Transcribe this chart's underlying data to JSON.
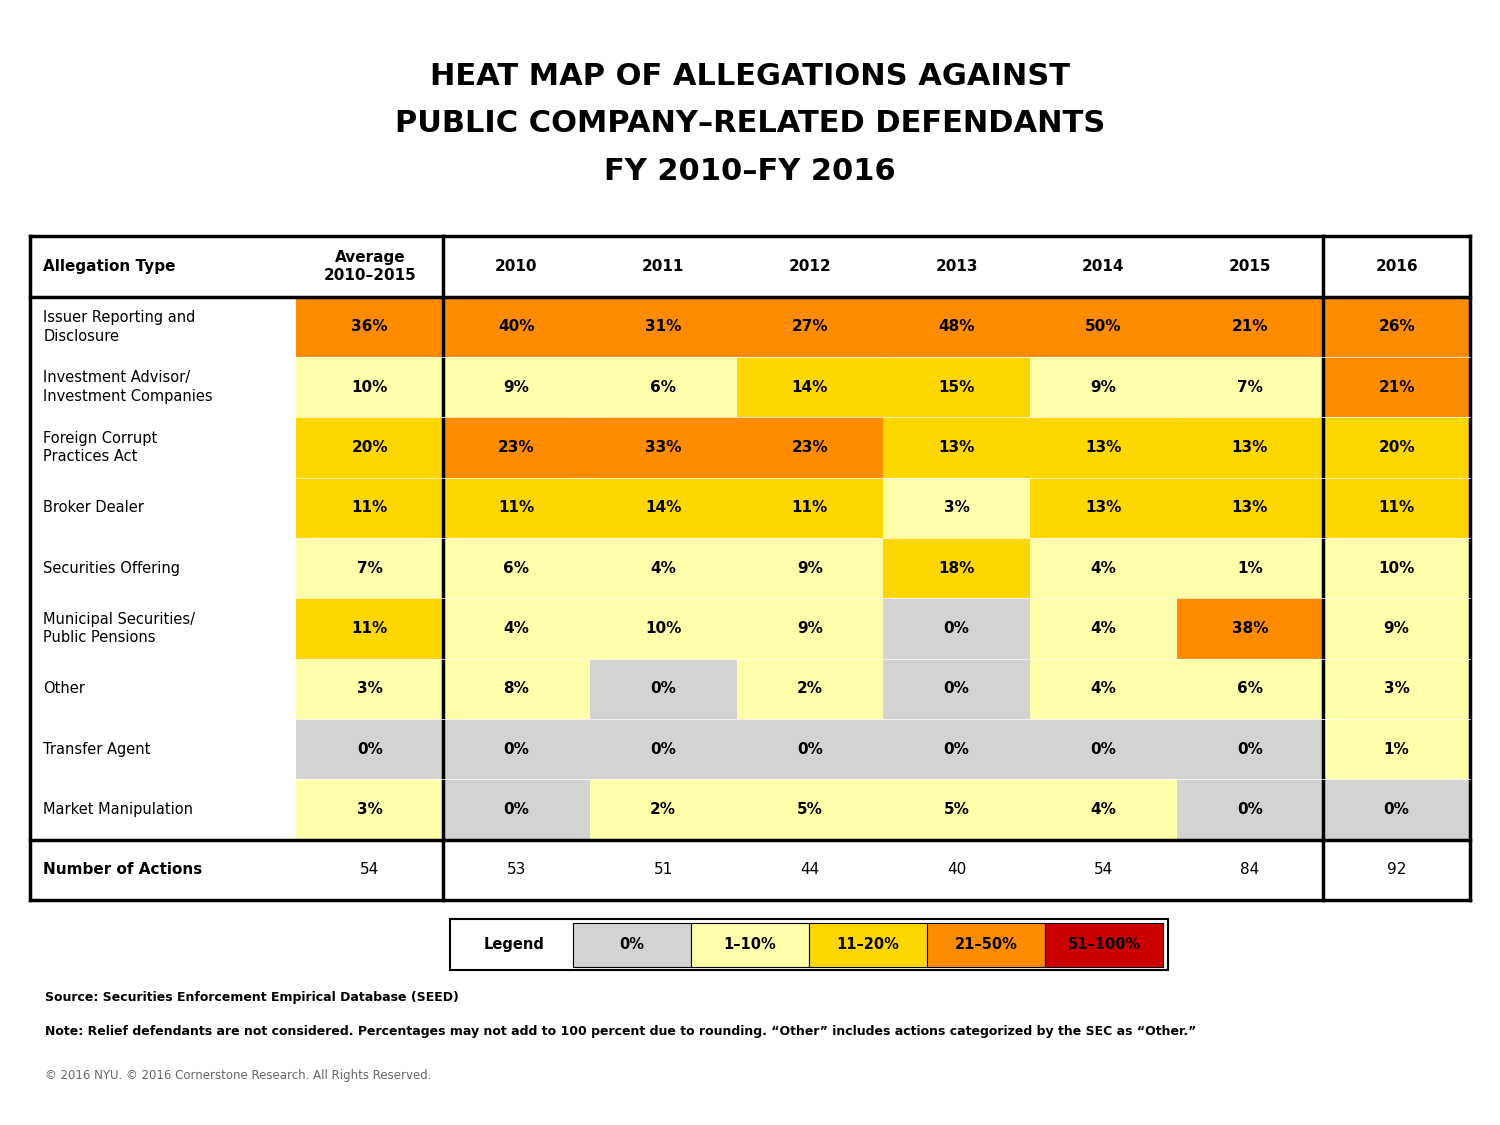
{
  "title": "HEAT MAP OF ALLEGATIONS AGAINST\nPUBLIC COMPANY–RELATED DEFENDANTS\nFY 2010–FY 2016",
  "col_headers": [
    "Average\n2010–2015",
    "2010",
    "2011",
    "2012",
    "2013",
    "2014",
    "2015",
    "2016"
  ],
  "row_labels": [
    "Issuer Reporting and\nDisclosure",
    "Investment Advisor/\nInvestment Companies",
    "Foreign Corrupt\nPractices Act",
    "Broker Dealer",
    "Securities Offering",
    "Municipal Securities/\nPublic Pensions",
    "Other",
    "Transfer Agent",
    "Market Manipulation"
  ],
  "data": [
    [
      36,
      40,
      31,
      27,
      48,
      50,
      21,
      26
    ],
    [
      10,
      9,
      6,
      14,
      15,
      9,
      7,
      21
    ],
    [
      20,
      23,
      33,
      23,
      13,
      13,
      13,
      20
    ],
    [
      11,
      11,
      14,
      11,
      3,
      13,
      13,
      11
    ],
    [
      7,
      6,
      4,
      9,
      18,
      4,
      1,
      10
    ],
    [
      11,
      4,
      10,
      9,
      0,
      4,
      38,
      9
    ],
    [
      3,
      8,
      0,
      2,
      0,
      4,
      6,
      3
    ],
    [
      0,
      0,
      0,
      0,
      0,
      0,
      0,
      1
    ],
    [
      3,
      0,
      2,
      5,
      5,
      4,
      0,
      0
    ]
  ],
  "num_actions_label": "Number of Actions",
  "num_actions": [
    54,
    53,
    51,
    44,
    40,
    54,
    84,
    92
  ],
  "color_zero": "#d3d3d3",
  "color_1_10": "#ffffaa",
  "color_11_20": "#ffd700",
  "color_21_50": "#ff8c00",
  "color_51_100": "#cc0000",
  "source_text": "Source: Securities Enforcement Empirical Database (SEED)",
  "note_text": "Note: Relief defendants are not considered. Percentages may not add to 100 percent due to rounding. “Other” includes actions categorized by the SEC as “Other.”",
  "copyright_text": "© 2016 NYU. © 2016 Cornerstone Research. All Rights Reserved.",
  "legend_labels": [
    "0%",
    "1–10%",
    "11–20%",
    "21–50%",
    "51–100%"
  ],
  "bg_color": "#ffffff"
}
